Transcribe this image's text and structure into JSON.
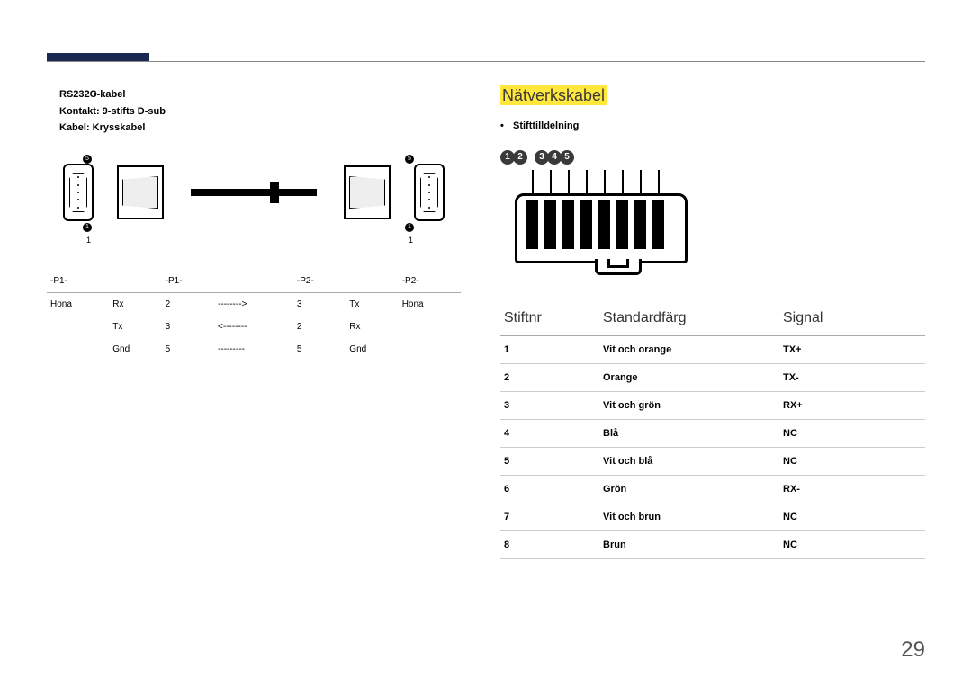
{
  "page_number": "29",
  "colors": {
    "accent_bar": "#1b2950",
    "highlight": "#ffe83b",
    "rule": "#888888",
    "badge_bg": "#3a3a3a"
  },
  "left": {
    "bullets": {
      "line1": "RS232C-kabel",
      "line2": "Kontakt: 9-stifts D-sub",
      "line3": "Kabel: Krysskabel"
    },
    "diagram": {
      "pin5": "5",
      "pin1": "1",
      "small1_left": "1",
      "small1_right": "1"
    },
    "rs_table": {
      "header": {
        "p1a": "-P1-",
        "p1b": "-P1-",
        "p2a": "-P2-",
        "p2b": "-P2-"
      },
      "rows": [
        {
          "c1": "Hona",
          "c2": "Rx",
          "c3": "2",
          "c4": "-------->",
          "c5": "3",
          "c6": "Tx",
          "c7": "Hona"
        },
        {
          "c1": "",
          "c2": "Tx",
          "c3": "3",
          "c4": "<--------",
          "c5": "2",
          "c6": "Rx",
          "c7": ""
        },
        {
          "c1": "",
          "c2": "Gnd",
          "c3": "5",
          "c4": "---------",
          "c5": "5",
          "c6": "Gnd",
          "c7": ""
        }
      ]
    }
  },
  "right": {
    "section_title": "Nätverkskabel",
    "bullet": "Stifttilldelning",
    "badges": [
      "1",
      "2",
      "3",
      "4",
      "5"
    ],
    "table": {
      "headers": {
        "c1": "Stiftnr",
        "c2": "Standardfärg",
        "c3": "Signal"
      },
      "rows": [
        {
          "n": "1",
          "color": "Vit och orange",
          "sig": "TX+"
        },
        {
          "n": "2",
          "color": "Orange",
          "sig": "TX-"
        },
        {
          "n": "3",
          "color": "Vit och grön",
          "sig": "RX+"
        },
        {
          "n": "4",
          "color": "Blå",
          "sig": "NC"
        },
        {
          "n": "5",
          "color": "Vit och blå",
          "sig": "NC"
        },
        {
          "n": "6",
          "color": "Grön",
          "sig": "RX-"
        },
        {
          "n": "7",
          "color": "Vit och brun",
          "sig": "NC"
        },
        {
          "n": "8",
          "color": "Brun",
          "sig": "NC"
        }
      ]
    }
  }
}
